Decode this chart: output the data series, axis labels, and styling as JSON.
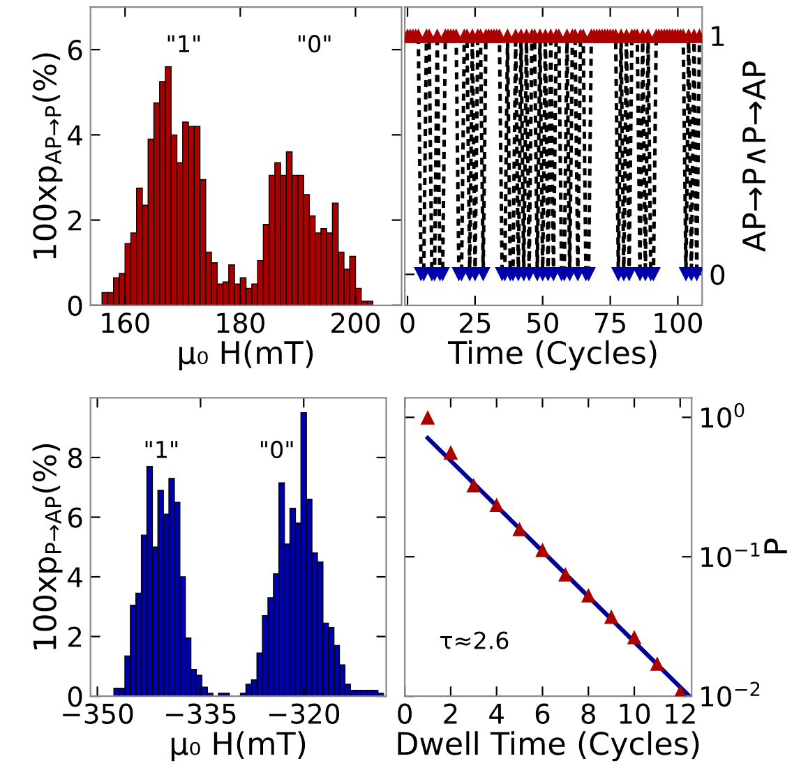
{
  "chart_data": [
    {
      "type": "histogram",
      "color": "#aa0000",
      "xlabel": "μ₀ H(mT)",
      "ylabel": "100xp$_{AP→P}$(%)",
      "bins": [
        156,
        157,
        158,
        159,
        160,
        161,
        162,
        163,
        164,
        165,
        166,
        167,
        168,
        169,
        170,
        171,
        172,
        173,
        174,
        175,
        176,
        177,
        178,
        179,
        180,
        181,
        182,
        183,
        184,
        185,
        186,
        187,
        188,
        189,
        190,
        191,
        192,
        193,
        194,
        195,
        196,
        197,
        198,
        199,
        200,
        201,
        202,
        203
      ],
      "values": [
        0.3,
        0.3,
        0.65,
        0.75,
        1.45,
        1.7,
        2.75,
        2.35,
        3.9,
        4.75,
        5.25,
        5.6,
        4.0,
        3.35,
        4.3,
        4.2,
        4.2,
        2.95,
        1.25,
        1.0,
        0.5,
        0.55,
        0.95,
        0.5,
        0.65,
        0.4,
        0.5,
        1.05,
        1.9,
        3.05,
        3.35,
        3.05,
        3.6,
        3.05,
        3.05,
        2.6,
        2.1,
        1.7,
        1.8,
        1.7,
        2.4,
        1.25,
        0.85,
        1.15,
        0.4,
        0.1,
        0.1
      ],
      "xlim": [
        154,
        208
      ],
      "xticks": [
        160,
        180,
        200
      ],
      "ylim": [
        0,
        7
      ],
      "yticks": [
        0,
        2,
        4,
        6
      ],
      "annotations": [
        "\"1\"",
        "\"0\""
      ]
    },
    {
      "type": "line",
      "xlabel": "Time (Cycles)",
      "y2label": "AP→P∧P→AP",
      "x": [
        0,
        1,
        2,
        3,
        4,
        5,
        6,
        7,
        8,
        9,
        10,
        11,
        12,
        13,
        14,
        15,
        16,
        17,
        18,
        19,
        20,
        21,
        22,
        23,
        24,
        25,
        26,
        27,
        28,
        29,
        30,
        31,
        32,
        33,
        34,
        35,
        36,
        37,
        38,
        39,
        40,
        41,
        42,
        43,
        44,
        45,
        46,
        47,
        48,
        49,
        50,
        51,
        52,
        53,
        54,
        55,
        56,
        57,
        58,
        59,
        60,
        61,
        62,
        63,
        64,
        65,
        66,
        67,
        68,
        69,
        70,
        71,
        72,
        73,
        74,
        75,
        76,
        77,
        78,
        79,
        80,
        81,
        82,
        83,
        84,
        85,
        86,
        87,
        88,
        89,
        90,
        91,
        92,
        93,
        94,
        95,
        96,
        97,
        98,
        99,
        100,
        101,
        102,
        103,
        104,
        105,
        106,
        107,
        108
      ],
      "series": [
        {
          "type": "line",
          "axis": "y2",
          "color": "#000000",
          "line_style": "dashed",
          "marker": "none",
          "values": [
            1,
            1,
            1,
            1,
            1,
            0,
            0,
            1,
            1,
            0,
            0,
            1,
            0,
            0,
            1,
            1,
            1,
            1,
            1,
            0,
            0,
            1,
            1,
            0,
            1,
            0,
            1,
            1,
            0,
            1,
            1,
            1,
            1,
            1,
            1,
            0,
            0,
            1,
            0,
            0,
            1,
            0,
            1,
            0,
            1,
            0,
            1,
            1,
            0,
            1,
            0,
            1,
            0,
            1,
            0,
            1,
            1,
            0,
            0,
            1,
            0,
            1,
            1,
            0,
            1,
            1,
            0,
            0,
            1,
            1,
            1,
            1,
            1,
            1,
            1,
            1,
            1,
            1,
            0,
            1,
            0,
            1,
            0,
            1,
            1,
            1,
            0,
            1,
            0,
            1,
            0,
            0,
            1,
            1,
            1,
            1,
            1,
            1,
            1,
            1,
            1,
            1,
            1,
            0,
            1,
            0,
            1,
            0,
            1
          ]
        },
        {
          "type": "scatter",
          "axis": "y2",
          "color": "#aa0000",
          "marker": "triangle",
          "values": [
            1,
            1,
            1,
            1,
            1,
            null,
            null,
            1,
            1,
            null,
            null,
            1,
            null,
            null,
            1,
            1,
            1,
            1,
            1,
            null,
            null,
            1,
            1,
            null,
            1,
            null,
            1,
            1,
            null,
            1,
            1,
            1,
            1,
            1,
            1,
            null,
            null,
            1,
            null,
            null,
            1,
            null,
            1,
            null,
            1,
            null,
            1,
            1,
            null,
            1,
            null,
            1,
            null,
            1,
            null,
            1,
            1,
            null,
            null,
            1,
            null,
            1,
            1,
            null,
            1,
            1,
            null,
            null,
            1,
            1,
            1,
            1,
            1,
            1,
            1,
            1,
            1,
            1,
            null,
            1,
            null,
            1,
            null,
            1,
            1,
            1,
            null,
            1,
            null,
            1,
            null,
            null,
            1,
            1,
            1,
            1,
            1,
            1,
            1,
            1,
            1,
            1,
            1,
            null,
            1,
            null,
            1,
            null,
            1
          ]
        },
        {
          "type": "scatter",
          "axis": "y2",
          "color": "#0000aa",
          "marker": "triangle-down",
          "values": [
            null,
            null,
            null,
            null,
            null,
            0,
            0,
            null,
            null,
            0,
            0,
            null,
            0,
            0,
            null,
            null,
            null,
            null,
            null,
            0,
            0,
            null,
            null,
            0,
            null,
            0,
            null,
            null,
            0,
            null,
            null,
            null,
            null,
            null,
            null,
            0,
            0,
            null,
            0,
            0,
            null,
            0,
            null,
            0,
            null,
            0,
            null,
            null,
            0,
            null,
            0,
            null,
            0,
            null,
            0,
            null,
            null,
            0,
            0,
            null,
            0,
            null,
            null,
            0,
            null,
            null,
            0,
            0,
            null,
            null,
            null,
            null,
            null,
            null,
            null,
            null,
            null,
            null,
            0,
            null,
            0,
            null,
            0,
            null,
            null,
            null,
            0,
            null,
            0,
            null,
            0,
            0,
            null,
            null,
            null,
            null,
            null,
            null,
            null,
            null,
            null,
            null,
            null,
            0,
            null,
            0,
            null,
            0,
            null
          ]
        }
      ],
      "xlim": [
        -1,
        109
      ],
      "xticks": [
        0,
        25,
        50,
        75,
        100
      ],
      "y2lim": [
        -0.13,
        1.12
      ],
      "y2ticks": [
        0,
        1
      ]
    },
    {
      "type": "histogram",
      "color": "#0000aa",
      "xlabel": "μ₀ H(mT)",
      "ylabel": "100xp$_{P→AP}$(%)",
      "bins": [
        -347.6,
        -346.8,
        -346.0,
        -345.2,
        -344.4,
        -343.6,
        -342.8,
        -342.0,
        -341.2,
        -340.4,
        -339.6,
        -338.8,
        -338.0,
        -337.2,
        -336.4,
        -335.6,
        -334.8,
        -334.0,
        -333.2,
        -332.4,
        -331.6,
        -330.8,
        -330.0,
        -329.2,
        -328.4,
        -327.6,
        -326.8,
        -326.0,
        -325.2,
        -324.4,
        -323.6,
        -322.8,
        -322.0,
        -321.2,
        -320.4,
        -319.6,
        -318.8,
        -318.0,
        -317.2,
        -316.4,
        -315.6,
        -314.8,
        -314.0,
        -313.2,
        -312.4,
        -311.6,
        -310.8,
        -310.0,
        -309.2,
        -308.4
      ],
      "values": [
        0.27,
        0.27,
        1.35,
        3.05,
        3.45,
        5.4,
        7.7,
        5.0,
        6.9,
        6.1,
        7.3,
        6.5,
        4.0,
        1.95,
        0.9,
        0.7,
        0.3,
        0.1,
        0,
        0.1,
        0.1,
        0,
        0,
        0.1,
        0.4,
        0.55,
        1.45,
        2.7,
        3.3,
        4.1,
        7.15,
        5.1,
        6.3,
        5.8,
        9.5,
        6.6,
        4.8,
        4.5,
        2.45,
        2.3,
        1.7,
        1.05,
        0.4,
        0.2,
        0.2,
        0.2,
        0.2,
        0.2,
        0.1
      ],
      "xlim": [
        -351,
        -308
      ],
      "xticks": [
        -350,
        -335,
        -320
      ],
      "ylim": [
        0,
        10
      ],
      "yticks": [
        0,
        2,
        4,
        6,
        8
      ],
      "annotations": [
        "\"1\"",
        "\"0\""
      ]
    },
    {
      "type": "scatter",
      "xlabel": "Dwell Time (Cycles)",
      "y2label": "P",
      "log": "y2",
      "series": [
        {
          "type": "scatter",
          "axis": "y2",
          "color": "#aa0000",
          "marker": "triangle",
          "x": [
            1,
            2,
            3,
            4,
            5,
            6,
            7,
            8,
            9,
            10,
            11,
            12
          ],
          "values": [
            1.0,
            0.56,
            0.326,
            0.236,
            0.158,
            0.112,
            0.0747,
            0.053,
            0.0372,
            0.0265,
            0.0171,
            0.0107
          ]
        },
        {
          "type": "line",
          "axis": "y2",
          "color": "#000099",
          "line_style": "solid",
          "marker": "none",
          "x": [
            1,
            12.4
          ],
          "values": [
            0.71,
            0.01
          ]
        }
      ],
      "xlim": [
        0,
        12.5
      ],
      "xticks": [
        0,
        2,
        4,
        6,
        8,
        10,
        12
      ],
      "y2lim": [
        0.01,
        1.38
      ],
      "y2ticks": [
        {
          "value": 1,
          "label": "10$^{0}$"
        },
        {
          "value": 0.1,
          "label": "10$^{−1}$"
        },
        {
          "value": 0.01,
          "label": "10$^{−2}$"
        }
      ],
      "annotations": [
        "τ≈2.6"
      ]
    }
  ]
}
